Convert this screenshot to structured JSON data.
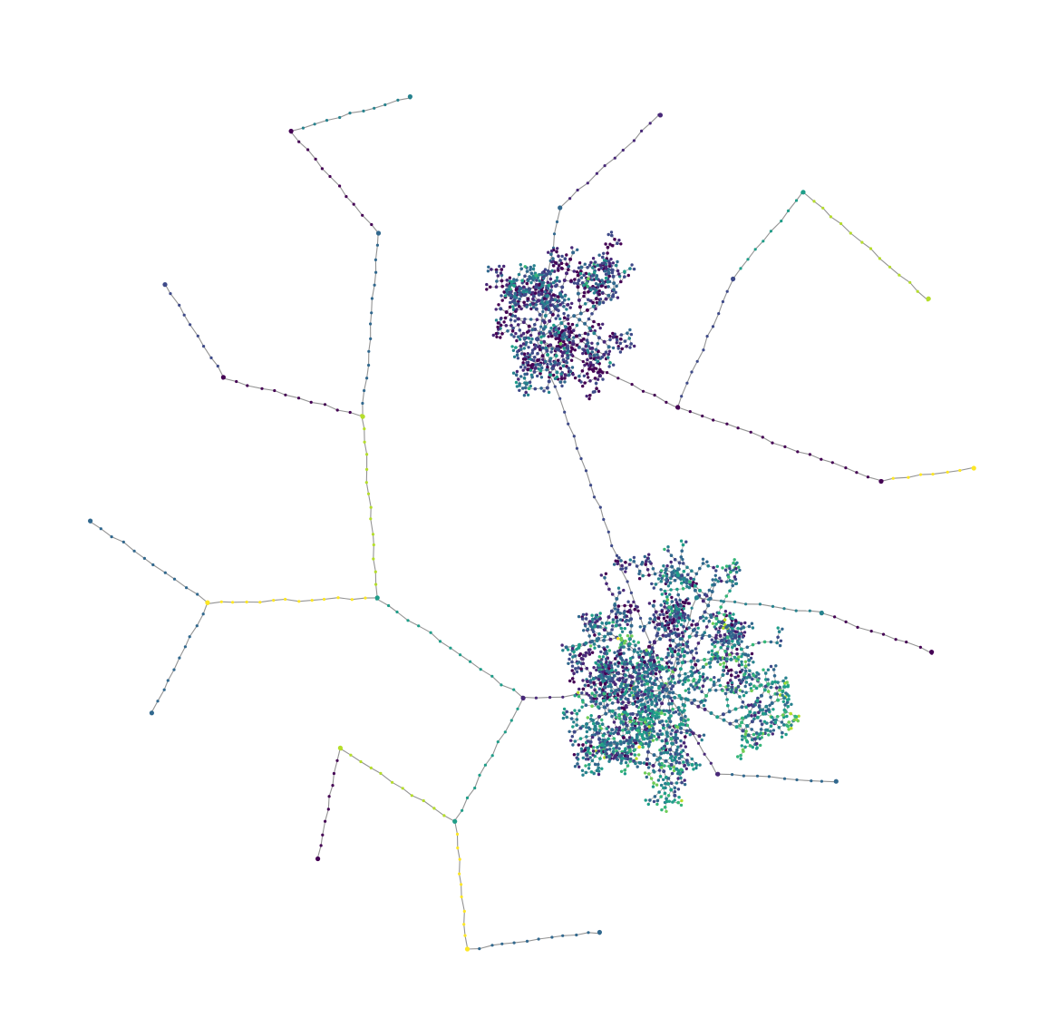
{
  "diagram": {
    "type": "tree-network",
    "layout": "radial-force",
    "edge_color": "#6f6f6f",
    "background": "#ffffff",
    "colormap": "viridis",
    "palette": [
      "#440154",
      "#482878",
      "#3e4a89",
      "#31688e",
      "#26828e",
      "#1f9e89",
      "#35b779",
      "#6ece58",
      "#b5de2b",
      "#fde725"
    ],
    "approx_node_count": 5000,
    "hubs": [
      {
        "id": "h0",
        "depth": 0,
        "color_index": 3
      },
      {
        "id": "h1",
        "depth": 1,
        "color_index": 2
      },
      {
        "id": "h2",
        "depth": 1,
        "color_index": 0
      },
      {
        "id": "h3",
        "depth": 1,
        "color_index": 4
      },
      {
        "id": "h4",
        "depth": 1,
        "color_index": 1
      },
      {
        "id": "h5",
        "depth": 1,
        "color_index": 5
      },
      {
        "id": "h6",
        "depth": 2,
        "color_index": 8
      },
      {
        "id": "h7",
        "depth": 2,
        "color_index": 9
      },
      {
        "id": "h8",
        "depth": 2,
        "color_index": 0
      },
      {
        "id": "h9",
        "depth": 2,
        "color_index": 3
      }
    ]
  }
}
